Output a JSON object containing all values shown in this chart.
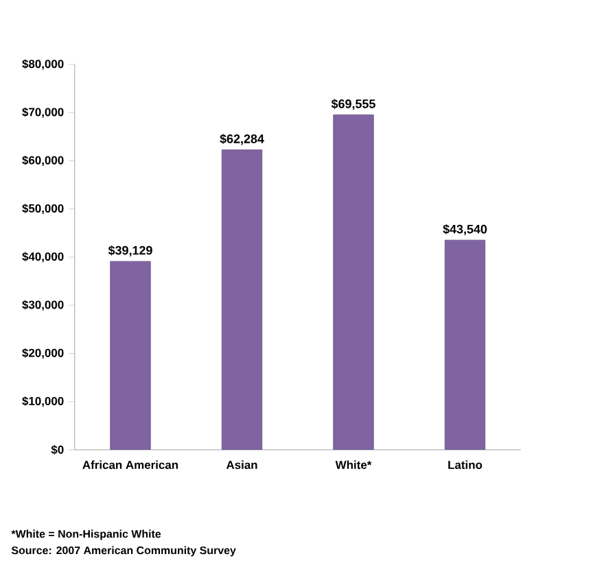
{
  "chart_data": {
    "type": "bar",
    "categories": [
      "African American",
      "Asian",
      "White*",
      "Latino"
    ],
    "values": [
      39129,
      62284,
      69555,
      43540
    ],
    "value_labels": [
      "$39,129",
      "$62,284",
      "$69,555",
      "$43,540"
    ],
    "color": "#8064a2",
    "ylim": [
      0,
      80000
    ],
    "yticks": [
      {
        "value": 0,
        "label": "$0"
      },
      {
        "value": 10000,
        "label": "$10,000"
      },
      {
        "value": 20000,
        "label": "$20,000"
      },
      {
        "value": 30000,
        "label": "$30,000"
      },
      {
        "value": 40000,
        "label": "$40,000"
      },
      {
        "value": 50000,
        "label": "$50,000"
      },
      {
        "value": 60000,
        "label": "$60,000"
      },
      {
        "value": 70000,
        "label": "$70,000"
      },
      {
        "value": 80000,
        "label": "$80,000"
      }
    ],
    "annotations": [
      "*White = Non-Hispanic White",
      "Source:  2007 American Community Survey"
    ]
  }
}
